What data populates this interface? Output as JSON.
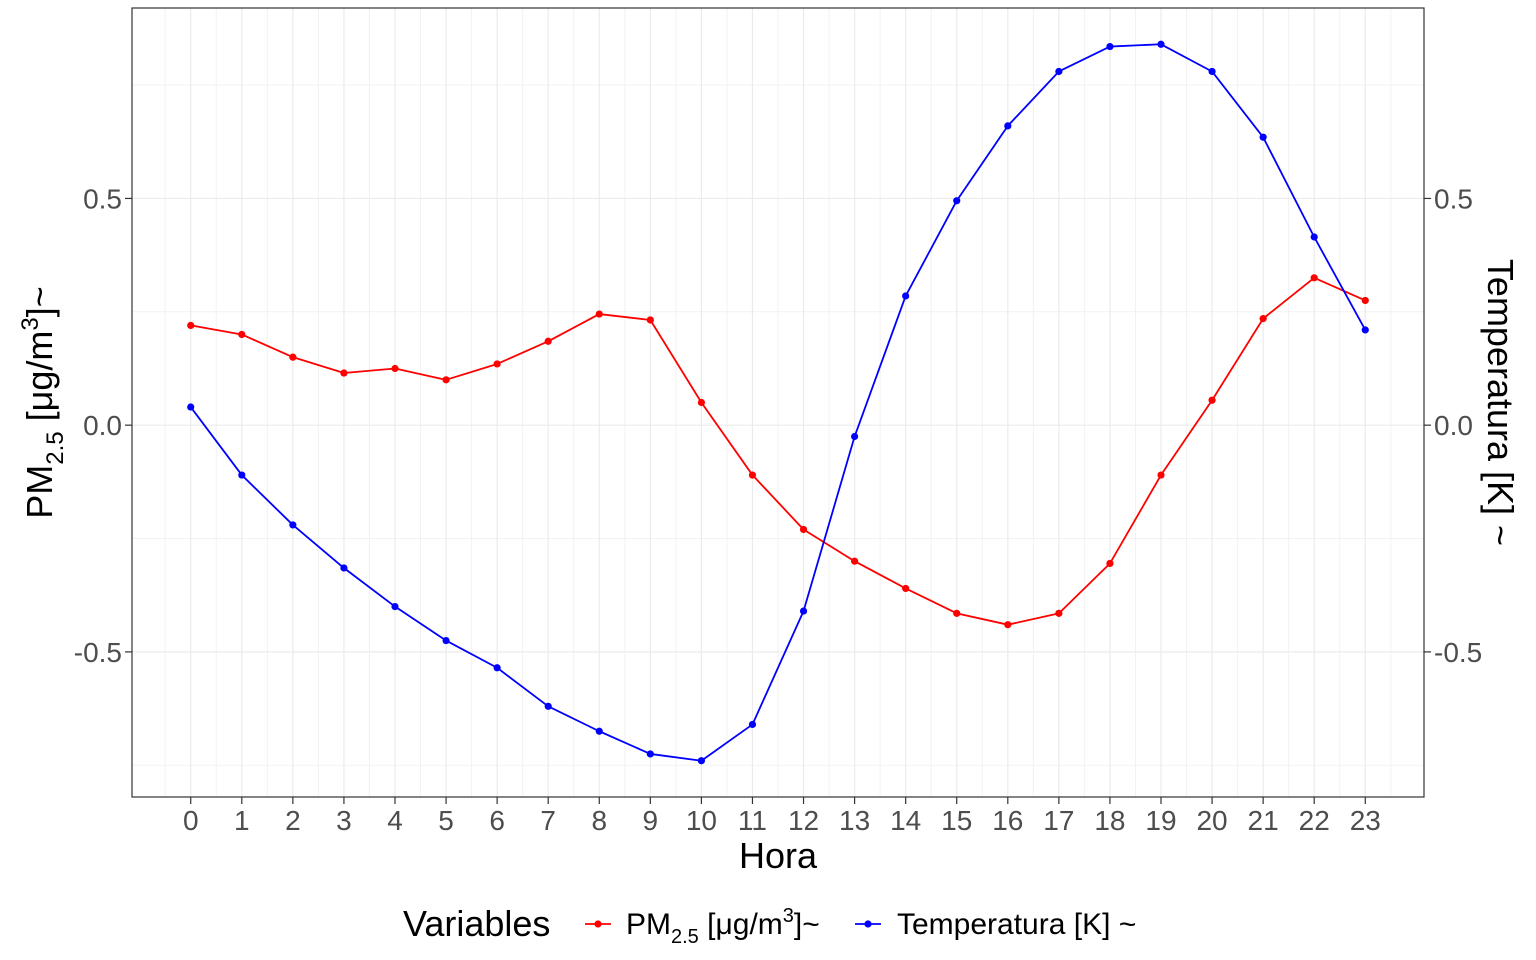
{
  "chart_data": {
    "type": "line",
    "title": "",
    "x": [
      0,
      1,
      2,
      3,
      4,
      5,
      6,
      7,
      8,
      9,
      10,
      11,
      12,
      13,
      14,
      15,
      16,
      17,
      18,
      19,
      20,
      21,
      22,
      23
    ],
    "xlabel": "Hora",
    "ylabel_left": {
      "base": "PM",
      "sub": "2.5",
      "unit_pre": " [",
      "mu": "μ",
      "unit_mid": "g/m",
      "sup": "3",
      "unit_post": "]~"
    },
    "ylabel_right": "Temperatura [K] ~",
    "ylim": [
      -0.82,
      0.92
    ],
    "yticks": [
      -0.5,
      0.0,
      0.5
    ],
    "ytick_labels": [
      "-0.5",
      "0.0",
      "0.5"
    ],
    "xticks": [
      0,
      1,
      2,
      3,
      4,
      5,
      6,
      7,
      8,
      9,
      10,
      11,
      12,
      13,
      14,
      15,
      16,
      17,
      18,
      19,
      20,
      21,
      22,
      23
    ],
    "xtick_labels": [
      "0",
      "1",
      "2",
      "3",
      "4",
      "5",
      "6",
      "7",
      "8",
      "9",
      "10",
      "11",
      "12",
      "13",
      "14",
      "15",
      "16",
      "17",
      "18",
      "19",
      "20",
      "21",
      "22",
      "23"
    ],
    "grid": true,
    "legend": {
      "position": "bottom",
      "title": "Variables",
      "entries": [
        {
          "base": "PM",
          "sub": "2.5",
          "unit_pre": " [",
          "mu": "μ",
          "unit_mid": "g/m",
          "sup": "3",
          "unit_post": "]~"
        },
        {
          "text": "Temperatura [K] ~"
        }
      ]
    },
    "series": [
      {
        "color": "#ff0000",
        "values": [
          0.22,
          0.2,
          0.15,
          0.115,
          0.125,
          0.1,
          0.135,
          0.185,
          0.245,
          0.232,
          0.05,
          -0.11,
          -0.23,
          -0.3,
          -0.36,
          -0.415,
          -0.44,
          -0.415,
          -0.305,
          -0.11,
          0.055,
          0.235,
          0.325,
          0.275
        ]
      },
      {
        "color": "#0000ff",
        "values": [
          0.04,
          -0.11,
          -0.22,
          -0.315,
          -0.4,
          -0.475,
          -0.535,
          -0.62,
          -0.675,
          -0.725,
          -0.74,
          -0.66,
          -0.41,
          -0.025,
          0.285,
          0.495,
          0.66,
          0.78,
          0.835,
          0.84,
          0.78,
          0.635,
          0.415,
          0.21
        ]
      }
    ]
  }
}
